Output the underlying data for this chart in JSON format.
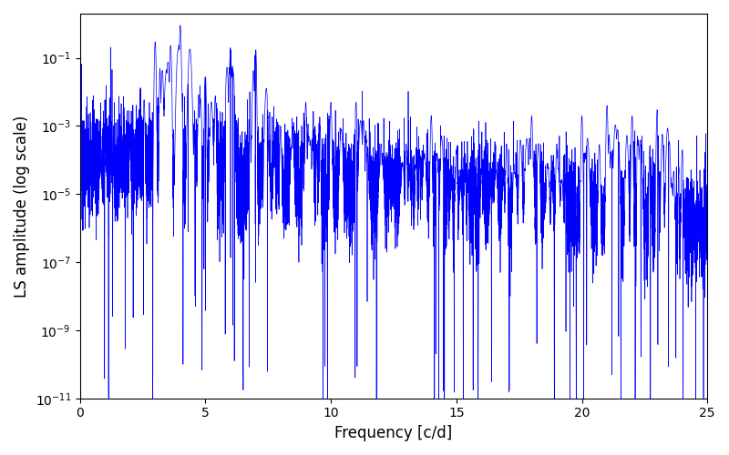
{
  "title": "",
  "xlabel": "Frequency [c/d]",
  "ylabel": "LS amplitude (log scale)",
  "xlim": [
    0,
    25
  ],
  "ylim": [
    1e-11,
    2
  ],
  "line_color": "#0000ff",
  "line_width": 0.5,
  "yscale": "log",
  "figsize": [
    8.0,
    5.0
  ],
  "dpi": 100,
  "seed": 12345,
  "freq_max": 25.0,
  "n_points": 8000
}
